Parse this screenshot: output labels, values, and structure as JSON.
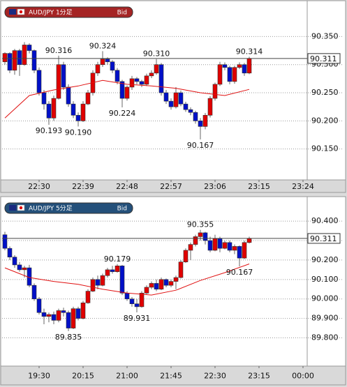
{
  "chart_data": [
    {
      "type": "candlestick",
      "title": "AUD/JPY 1分足",
      "badge": "Bid",
      "header_color": "#a52424",
      "up_color": "#e00000",
      "down_color": "#0010c8",
      "x": [
        0,
        1,
        2,
        3,
        4,
        5,
        6,
        7,
        8,
        9,
        10,
        11,
        12,
        13,
        14,
        15,
        16,
        17,
        18,
        19,
        20,
        21,
        22,
        23,
        24,
        25,
        26,
        27,
        28,
        29,
        30,
        31,
        32,
        33,
        34,
        35,
        36,
        37,
        38,
        39,
        40,
        41,
        42,
        43,
        44,
        45,
        46,
        47,
        48,
        49,
        50
      ],
      "open": [
        90.305,
        90.32,
        90.29,
        90.325,
        90.3,
        90.335,
        90.325,
        90.29,
        90.25,
        90.23,
        90.205,
        90.24,
        90.3,
        90.26,
        90.23,
        90.21,
        90.2,
        90.23,
        90.25,
        90.285,
        90.3,
        90.31,
        90.305,
        90.29,
        90.27,
        90.24,
        90.26,
        90.275,
        90.27,
        90.265,
        90.28,
        90.285,
        90.3,
        90.25,
        90.235,
        90.225,
        90.25,
        90.23,
        90.22,
        90.215,
        90.2,
        90.19,
        90.21,
        90.24,
        90.265,
        90.3,
        90.295,
        90.27,
        90.295,
        90.3,
        90.285
      ],
      "high": [
        90.322,
        90.322,
        90.328,
        90.328,
        90.34,
        90.338,
        90.327,
        90.295,
        90.255,
        90.235,
        90.245,
        90.316,
        90.305,
        90.265,
        90.235,
        90.215,
        90.235,
        90.255,
        90.29,
        90.305,
        90.324,
        90.313,
        90.308,
        90.294,
        90.273,
        90.263,
        90.28,
        90.278,
        90.273,
        90.284,
        90.29,
        90.31,
        90.303,
        90.255,
        90.24,
        90.26,
        90.254,
        90.234,
        90.224,
        90.218,
        90.205,
        90.214,
        90.244,
        90.268,
        90.305,
        90.304,
        90.298,
        90.298,
        90.304,
        90.303,
        90.314
      ],
      "low": [
        90.3,
        90.285,
        90.282,
        90.28,
        90.298,
        90.32,
        90.285,
        90.245,
        90.22,
        90.193,
        90.2,
        90.238,
        90.255,
        90.225,
        90.205,
        90.19,
        90.198,
        90.228,
        90.245,
        90.28,
        90.296,
        90.3,
        90.285,
        90.265,
        90.224,
        90.236,
        90.255,
        90.265,
        90.26,
        90.262,
        90.276,
        90.282,
        90.245,
        90.23,
        90.22,
        90.222,
        90.226,
        90.216,
        90.21,
        90.195,
        90.167,
        90.185,
        90.206,
        90.236,
        90.262,
        90.29,
        90.265,
        90.266,
        90.292,
        90.28,
        90.283
      ],
      "close": [
        90.32,
        90.29,
        90.325,
        90.3,
        90.335,
        90.325,
        90.29,
        90.25,
        90.23,
        90.205,
        90.24,
        90.3,
        90.26,
        90.23,
        90.21,
        90.2,
        90.23,
        90.25,
        90.285,
        90.3,
        90.31,
        90.305,
        90.29,
        90.27,
        90.24,
        90.26,
        90.275,
        90.27,
        90.265,
        90.28,
        90.285,
        90.3,
        90.25,
        90.235,
        90.225,
        90.25,
        90.23,
        90.22,
        90.215,
        90.2,
        90.19,
        90.21,
        90.24,
        90.265,
        90.3,
        90.295,
        90.27,
        90.295,
        90.3,
        90.285,
        90.311
      ],
      "ma": {
        "color": "#e01010",
        "x": [
          0,
          5,
          10,
          15,
          20,
          25,
          30,
          35,
          40,
          45,
          50
        ],
        "values": [
          90.205,
          90.245,
          90.255,
          90.262,
          90.272,
          90.265,
          90.262,
          90.258,
          90.25,
          90.245,
          90.256
        ]
      },
      "last": 90.311,
      "annotations": [
        {
          "label": "90.316",
          "x": 11
        },
        {
          "label": "90.193",
          "x": 9
        },
        {
          "label": "90.190",
          "x": 15
        },
        {
          "label": "90.324",
          "x": 20
        },
        {
          "label": "90.224",
          "x": 24
        },
        {
          "label": "90.310",
          "x": 31
        },
        {
          "label": "90.167",
          "x": 40
        },
        {
          "label": "90.314",
          "x": 50
        }
      ],
      "xlim": [
        -0.57,
        61.86
      ],
      "xticks": [
        {
          "value": 7,
          "label": "22:30"
        },
        {
          "value": 16,
          "label": "22:39"
        },
        {
          "value": 25,
          "label": "22:48"
        },
        {
          "value": 34,
          "label": "22:57"
        },
        {
          "value": 43,
          "label": "23:06"
        },
        {
          "value": 52,
          "label": "23:15"
        },
        {
          "value": 61,
          "label": "23:24"
        }
      ],
      "ylim": [
        90.095,
        90.41
      ],
      "yticks": [
        {
          "value": 90.15,
          "label": "90.150"
        },
        {
          "value": 90.2,
          "label": "90.200"
        },
        {
          "value": 90.25,
          "label": "90.250"
        },
        {
          "value": 90.3,
          "label": "90.300"
        },
        {
          "value": 90.35,
          "label": "90.350"
        }
      ],
      "grid": true
    },
    {
      "type": "candlestick",
      "title": "AUD/JPY 5分足",
      "badge": "Bid",
      "header_color": "#24507a",
      "up_color": "#e00000",
      "down_color": "#0010c8",
      "x": [
        0,
        1,
        2,
        3,
        4,
        5,
        6,
        7,
        8,
        9,
        10,
        11,
        12,
        13,
        14,
        15,
        16,
        17,
        18,
        19,
        20,
        21,
        22,
        23,
        24,
        25,
        26,
        27,
        28,
        29,
        30,
        31,
        32,
        33,
        34,
        35,
        36,
        37,
        38,
        39,
        40,
        41,
        42,
        43,
        44,
        45,
        46,
        47,
        48,
        49,
        50
      ],
      "open": [
        90.33,
        90.26,
        90.215,
        90.175,
        90.15,
        90.16,
        90.07,
        90.0,
        89.93,
        89.91,
        89.92,
        89.89,
        89.94,
        89.93,
        89.85,
        89.95,
        89.9,
        89.98,
        90.04,
        90.1,
        90.07,
        90.12,
        90.15,
        90.14,
        90.17,
        90.03,
        90.0,
        89.975,
        89.96,
        90.03,
        90.06,
        90.08,
        90.05,
        90.1,
        90.07,
        90.09,
        90.11,
        90.19,
        90.25,
        90.28,
        90.32,
        90.34,
        90.3,
        90.25,
        90.31,
        90.26,
        90.29,
        90.25,
        90.27,
        90.21,
        90.29
      ],
      "high": [
        90.345,
        90.27,
        90.225,
        90.19,
        90.17,
        90.175,
        90.08,
        90.01,
        89.95,
        89.93,
        89.935,
        89.95,
        89.955,
        89.94,
        89.96,
        89.96,
        89.99,
        90.05,
        90.11,
        90.12,
        90.13,
        90.16,
        90.17,
        90.179,
        90.175,
        90.04,
        90.01,
        90.0,
        90.04,
        90.07,
        90.09,
        90.1,
        90.11,
        90.105,
        90.1,
        90.12,
        90.2,
        90.26,
        90.29,
        90.33,
        90.355,
        90.345,
        90.32,
        90.33,
        90.32,
        90.3,
        90.3,
        90.28,
        90.275,
        90.3,
        90.32
      ],
      "low": [
        90.25,
        90.2,
        90.16,
        90.14,
        90.11,
        90.06,
        89.99,
        89.92,
        89.87,
        89.88,
        89.87,
        89.88,
        89.91,
        89.835,
        89.845,
        89.89,
        89.895,
        89.975,
        90.035,
        90.05,
        90.065,
        90.11,
        90.13,
        90.135,
        90.02,
        89.99,
        89.96,
        89.931,
        89.955,
        90.025,
        90.05,
        90.04,
        90.045,
        90.06,
        90.06,
        90.05,
        90.105,
        90.185,
        90.2,
        90.27,
        90.3,
        90.28,
        90.24,
        90.245,
        90.24,
        90.255,
        90.24,
        90.23,
        90.167,
        90.205,
        90.285
      ],
      "close": [
        90.26,
        90.215,
        90.175,
        90.15,
        90.16,
        90.07,
        90.0,
        89.93,
        89.91,
        89.92,
        89.89,
        89.94,
        89.93,
        89.85,
        89.95,
        89.9,
        89.98,
        90.04,
        90.1,
        90.07,
        90.12,
        90.15,
        90.14,
        90.17,
        90.03,
        90.0,
        89.975,
        89.96,
        90.03,
        90.06,
        90.08,
        90.05,
        90.1,
        90.07,
        90.09,
        90.11,
        90.19,
        90.25,
        90.28,
        90.32,
        90.34,
        90.3,
        90.25,
        90.31,
        90.26,
        90.29,
        90.25,
        90.27,
        90.21,
        90.29,
        90.311
      ],
      "ma": {
        "color": "#e01010",
        "x": [
          0,
          5,
          10,
          15,
          20,
          25,
          30,
          35,
          40,
          45,
          50
        ],
        "values": [
          90.16,
          90.11,
          90.09,
          90.075,
          90.05,
          90.03,
          90.02,
          90.045,
          90.095,
          90.135,
          90.18
        ]
      },
      "last": 90.311,
      "annotations": [
        {
          "label": "90.179",
          "x": 23
        },
        {
          "label": "89.835",
          "x": 13
        },
        {
          "label": "89.931",
          "x": 27
        },
        {
          "label": "90.355",
          "x": 40
        },
        {
          "label": "90.167",
          "x": 48
        }
      ],
      "xlim": [
        -0.57,
        61.86
      ],
      "xticks": [
        {
          "value": 7,
          "label": "19:30"
        },
        {
          "value": 16,
          "label": "20:15"
        },
        {
          "value": 25,
          "label": "21:00"
        },
        {
          "value": 34,
          "label": "21:45"
        },
        {
          "value": 43,
          "label": "22:30"
        },
        {
          "value": 52,
          "label": "23:15"
        },
        {
          "value": 61,
          "label": "00:00"
        }
      ],
      "ylim": [
        89.655,
        90.515
      ],
      "yticks": [
        {
          "value": 89.8,
          "label": "89.800"
        },
        {
          "value": 89.9,
          "label": "89.900"
        },
        {
          "value": 90.0,
          "label": "90.000"
        },
        {
          "value": 90.1,
          "label": "90.100"
        },
        {
          "value": 90.2,
          "label": "90.200"
        },
        {
          "value": 90.3,
          "label": "90.300"
        },
        {
          "value": 90.4,
          "label": "90.400"
        }
      ],
      "grid": true
    }
  ]
}
